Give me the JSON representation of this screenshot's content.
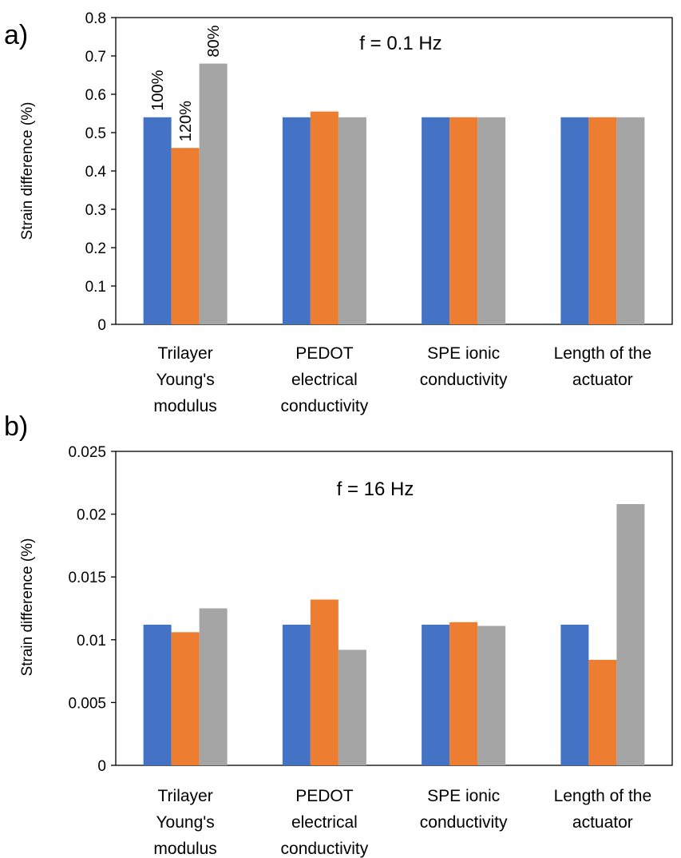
{
  "colors": {
    "s100": "#4472C4",
    "s120": "#ED7D31",
    "s80": "#A5A5A5",
    "axis": "#000000"
  },
  "chart_data": [
    {
      "type": "bar",
      "panel_label": "a)",
      "annotation": "f = 0.1 Hz",
      "ylabel": "Strain difference (%)",
      "xlabel": "",
      "ylim": [
        0,
        0.8
      ],
      "yticks": [
        "0",
        "0.1",
        "0.2",
        "0.3",
        "0.4",
        "0.5",
        "0.6",
        "0.7",
        "0.8"
      ],
      "categories": [
        [
          "Trilayer",
          "Young's",
          "modulus"
        ],
        [
          "PEDOT",
          "electrical",
          "conductivity"
        ],
        [
          "SPE ionic",
          "conductivity"
        ],
        [
          "Length of the",
          "actuator"
        ]
      ],
      "series": [
        {
          "name": "100%",
          "values": [
            0.54,
            0.54,
            0.54,
            0.54
          ]
        },
        {
          "name": "120%",
          "values": [
            0.46,
            0.555,
            0.54,
            0.54
          ]
        },
        {
          "name": "80%",
          "values": [
            0.68,
            0.54,
            0.54,
            0.54
          ]
        }
      ],
      "grid": false
    },
    {
      "type": "bar",
      "panel_label": "b)",
      "annotation": "f = 16 Hz",
      "ylabel": "Strain difference (%)",
      "xlabel": "",
      "ylim": [
        0,
        0.025
      ],
      "yticks": [
        "0",
        "0.005",
        "0.01",
        "0.015",
        "0.02",
        "0.025"
      ],
      "categories": [
        [
          "Trilayer",
          "Young's",
          "modulus"
        ],
        [
          "PEDOT",
          "electrical",
          "conductivity"
        ],
        [
          "SPE ionic",
          "conductivity"
        ],
        [
          "Length of the",
          "actuator"
        ]
      ],
      "series": [
        {
          "values": [
            0.0112,
            0.0112,
            0.0112,
            0.0112
          ]
        },
        {
          "values": [
            0.0106,
            0.0132,
            0.0114,
            0.0084
          ]
        },
        {
          "values": [
            0.0125,
            0.0092,
            0.0111,
            0.0208
          ]
        }
      ],
      "grid": false
    }
  ]
}
